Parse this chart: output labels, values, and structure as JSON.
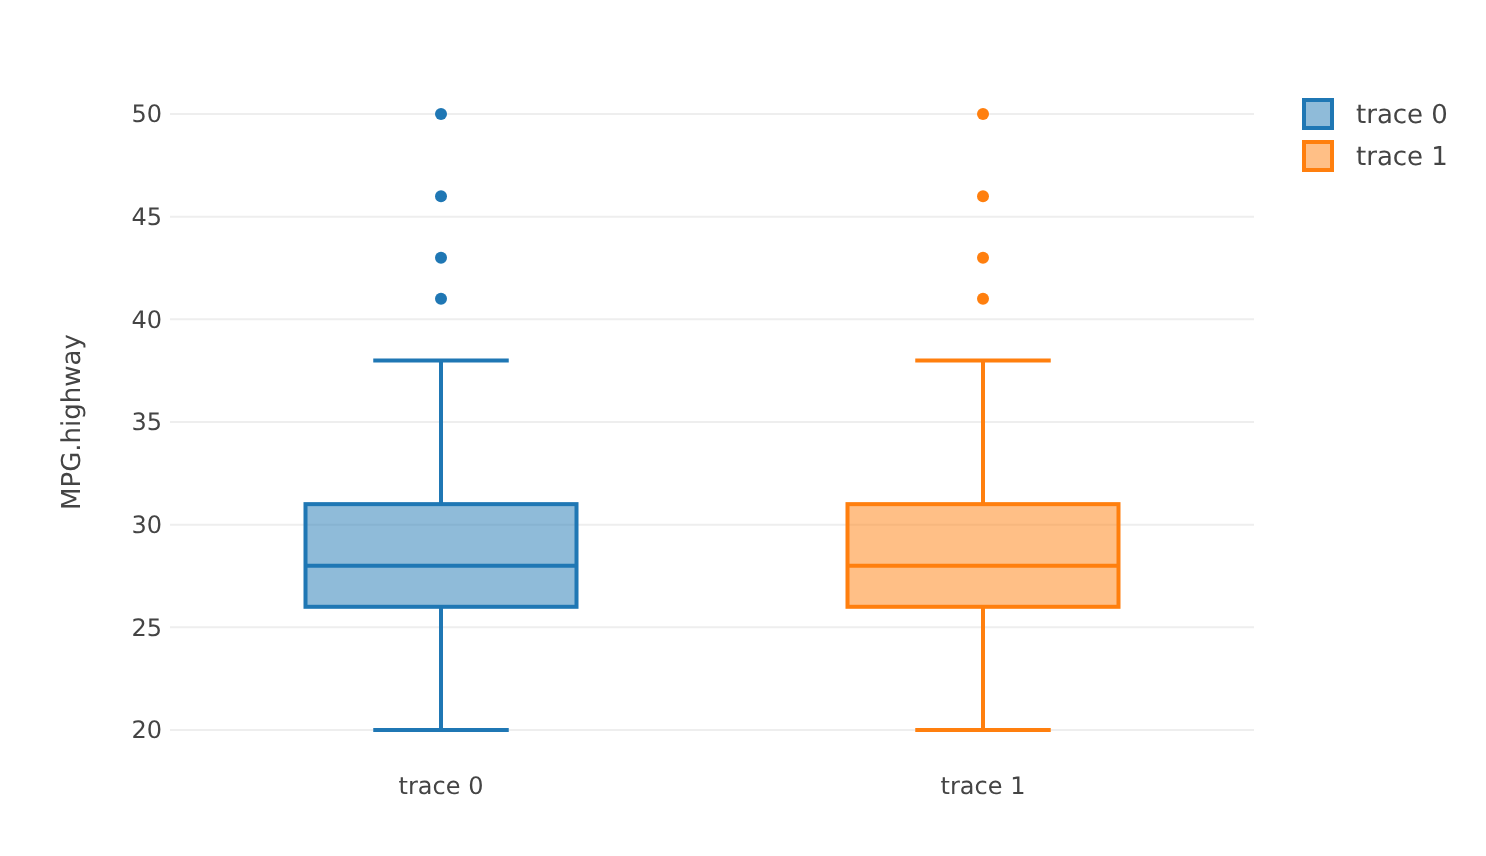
{
  "chart_data": {
    "type": "box",
    "ylabel": "MPG.highway",
    "categories": [
      "trace 0",
      "trace 1"
    ],
    "series": [
      {
        "name": "trace 0",
        "color": "#1f77b4",
        "boxes": [
          {
            "low": 20,
            "q1": 26,
            "median": 28,
            "q3": 31,
            "high": 38,
            "outliers": [
              41,
              43,
              46,
              50
            ]
          },
          null
        ]
      },
      {
        "name": "trace 1",
        "color": "#ff7f0e",
        "boxes": [
          null,
          {
            "low": 20,
            "q1": 26,
            "median": 28,
            "q3": 31,
            "high": 38,
            "outliers": [
              41,
              43,
              46,
              50
            ]
          }
        ]
      }
    ],
    "ylim": [
      20,
      50
    ],
    "yticks": [
      20,
      25,
      30,
      35,
      40,
      45,
      50
    ],
    "grid": "y",
    "legend": "top right",
    "marker": "circle"
  }
}
